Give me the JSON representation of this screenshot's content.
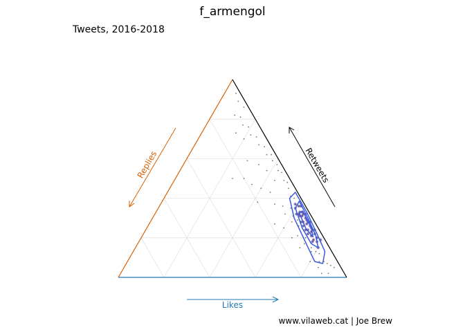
{
  "chart_data": {
    "type": "scatter",
    "title": "f_armengol",
    "subtitle": "Tweets, 2016-2018",
    "caption": "www.vilaweb.cat | Joe Brew",
    "axes": {
      "bottom": {
        "label": "Likes",
        "color": "#1f78b4"
      },
      "left": {
        "label": "Replies",
        "color": "#d95f02"
      },
      "right": {
        "label": "Retweets",
        "color": "#000000"
      }
    },
    "grid": true,
    "grid_breaks": [
      0.2,
      0.4,
      0.6,
      0.8
    ],
    "ternary_space": "likes + replies + retweets = 1",
    "point_color": "#000000",
    "density_point_color": "#2d0b7a",
    "contour_color": "#3b5bdb",
    "points": [
      [
        0.62,
        0.02,
        0.36
      ],
      [
        0.64,
        0.03,
        0.33
      ],
      [
        0.66,
        0.02,
        0.32
      ],
      [
        0.68,
        0.03,
        0.29
      ],
      [
        0.7,
        0.02,
        0.28
      ],
      [
        0.72,
        0.03,
        0.25
      ],
      [
        0.74,
        0.02,
        0.24
      ],
      [
        0.75,
        0.03,
        0.22
      ],
      [
        0.77,
        0.03,
        0.2
      ],
      [
        0.79,
        0.02,
        0.19
      ],
      [
        0.6,
        0.05,
        0.35
      ],
      [
        0.63,
        0.05,
        0.32
      ],
      [
        0.65,
        0.04,
        0.31
      ],
      [
        0.67,
        0.05,
        0.28
      ],
      [
        0.69,
        0.04,
        0.27
      ],
      [
        0.71,
        0.05,
        0.24
      ],
      [
        0.73,
        0.04,
        0.23
      ],
      [
        0.76,
        0.05,
        0.19
      ],
      [
        0.78,
        0.04,
        0.18
      ],
      [
        0.8,
        0.05,
        0.15
      ],
      [
        0.58,
        0.07,
        0.35
      ],
      [
        0.61,
        0.08,
        0.31
      ],
      [
        0.64,
        0.07,
        0.29
      ],
      [
        0.66,
        0.08,
        0.26
      ],
      [
        0.69,
        0.07,
        0.24
      ],
      [
        0.72,
        0.08,
        0.2
      ],
      [
        0.74,
        0.07,
        0.19
      ],
      [
        0.77,
        0.08,
        0.15
      ],
      [
        0.8,
        0.07,
        0.13
      ],
      [
        0.82,
        0.06,
        0.12
      ],
      [
        0.55,
        0.04,
        0.41
      ],
      [
        0.57,
        0.03,
        0.4
      ],
      [
        0.59,
        0.04,
        0.37
      ],
      [
        0.52,
        0.03,
        0.45
      ],
      [
        0.5,
        0.02,
        0.48
      ],
      [
        0.48,
        0.03,
        0.49
      ],
      [
        0.45,
        0.02,
        0.53
      ],
      [
        0.43,
        0.03,
        0.54
      ],
      [
        0.41,
        0.02,
        0.57
      ],
      [
        0.38,
        0.03,
        0.59
      ],
      [
        0.36,
        0.02,
        0.62
      ],
      [
        0.34,
        0.04,
        0.62
      ],
      [
        0.31,
        0.03,
        0.66
      ],
      [
        0.28,
        0.05,
        0.67
      ],
      [
        0.25,
        0.04,
        0.71
      ],
      [
        0.22,
        0.06,
        0.72
      ],
      [
        0.19,
        0.05,
        0.76
      ],
      [
        0.16,
        0.07,
        0.77
      ],
      [
        0.13,
        0.06,
        0.81
      ],
      [
        0.1,
        0.08,
        0.82
      ],
      [
        0.54,
        0.1,
        0.36
      ],
      [
        0.57,
        0.11,
        0.32
      ],
      [
        0.62,
        0.1,
        0.28
      ],
      [
        0.68,
        0.11,
        0.21
      ],
      [
        0.73,
        0.1,
        0.17
      ],
      [
        0.78,
        0.09,
        0.13
      ],
      [
        0.84,
        0.08,
        0.08
      ],
      [
        0.86,
        0.06,
        0.08
      ],
      [
        0.88,
        0.05,
        0.07
      ],
      [
        0.85,
        0.1,
        0.05
      ],
      [
        0.45,
        0.12,
        0.43
      ],
      [
        0.4,
        0.15,
        0.45
      ],
      [
        0.35,
        0.18,
        0.47
      ],
      [
        0.3,
        0.2,
        0.5
      ],
      [
        0.27,
        0.14,
        0.59
      ],
      [
        0.33,
        0.1,
        0.57
      ],
      [
        0.38,
        0.08,
        0.54
      ],
      [
        0.44,
        0.07,
        0.49
      ],
      [
        0.5,
        0.13,
        0.37
      ],
      [
        0.6,
        0.15,
        0.25
      ],
      [
        0.66,
        0.14,
        0.2
      ],
      [
        0.72,
        0.13,
        0.15
      ],
      [
        0.8,
        0.12,
        0.08
      ],
      [
        0.9,
        0.04,
        0.06
      ],
      [
        0.92,
        0.03,
        0.05
      ],
      [
        0.91,
        0.07,
        0.02
      ],
      [
        0.88,
        0.1,
        0.02
      ],
      [
        0.2,
        0.1,
        0.7
      ],
      [
        0.15,
        0.12,
        0.73
      ],
      [
        0.12,
        0.02,
        0.86
      ],
      [
        0.08,
        0.03,
        0.89
      ],
      [
        0.05,
        0.02,
        0.93
      ],
      [
        0.25,
        0.25,
        0.5
      ],
      [
        0.42,
        0.2,
        0.38
      ],
      [
        0.55,
        0.18,
        0.27
      ],
      [
        0.62,
        0.06,
        0.32
      ],
      [
        0.64,
        0.05,
        0.31
      ],
      [
        0.66,
        0.06,
        0.28
      ],
      [
        0.68,
        0.06,
        0.26
      ],
      [
        0.7,
        0.06,
        0.24
      ],
      [
        0.72,
        0.06,
        0.22
      ],
      [
        0.74,
        0.05,
        0.21
      ],
      [
        0.76,
        0.06,
        0.18
      ],
      [
        0.67,
        0.03,
        0.3
      ],
      [
        0.69,
        0.03,
        0.28
      ],
      [
        0.71,
        0.03,
        0.26
      ],
      [
        0.73,
        0.03,
        0.24
      ],
      [
        0.65,
        0.03,
        0.32
      ],
      [
        0.63,
        0.04,
        0.33
      ],
      [
        0.61,
        0.03,
        0.36
      ]
    ],
    "contours": [
      [
        [
          0.56,
          0.01,
          0.43
        ],
        [
          0.66,
          0.01,
          0.33
        ],
        [
          0.76,
          0.02,
          0.22
        ],
        [
          0.84,
          0.03,
          0.13
        ],
        [
          0.86,
          0.07,
          0.07
        ],
        [
          0.82,
          0.1,
          0.08
        ],
        [
          0.72,
          0.09,
          0.19
        ],
        [
          0.62,
          0.08,
          0.3
        ],
        [
          0.55,
          0.05,
          0.4
        ]
      ],
      [
        [
          0.6,
          0.015,
          0.385
        ],
        [
          0.68,
          0.02,
          0.3
        ],
        [
          0.76,
          0.03,
          0.21
        ],
        [
          0.8,
          0.05,
          0.15
        ],
        [
          0.76,
          0.07,
          0.17
        ],
        [
          0.68,
          0.07,
          0.25
        ],
        [
          0.6,
          0.05,
          0.35
        ]
      ],
      [
        [
          0.64,
          0.025,
          0.335
        ],
        [
          0.72,
          0.03,
          0.25
        ],
        [
          0.75,
          0.045,
          0.205
        ],
        [
          0.7,
          0.055,
          0.245
        ],
        [
          0.63,
          0.045,
          0.325
        ]
      ]
    ]
  }
}
